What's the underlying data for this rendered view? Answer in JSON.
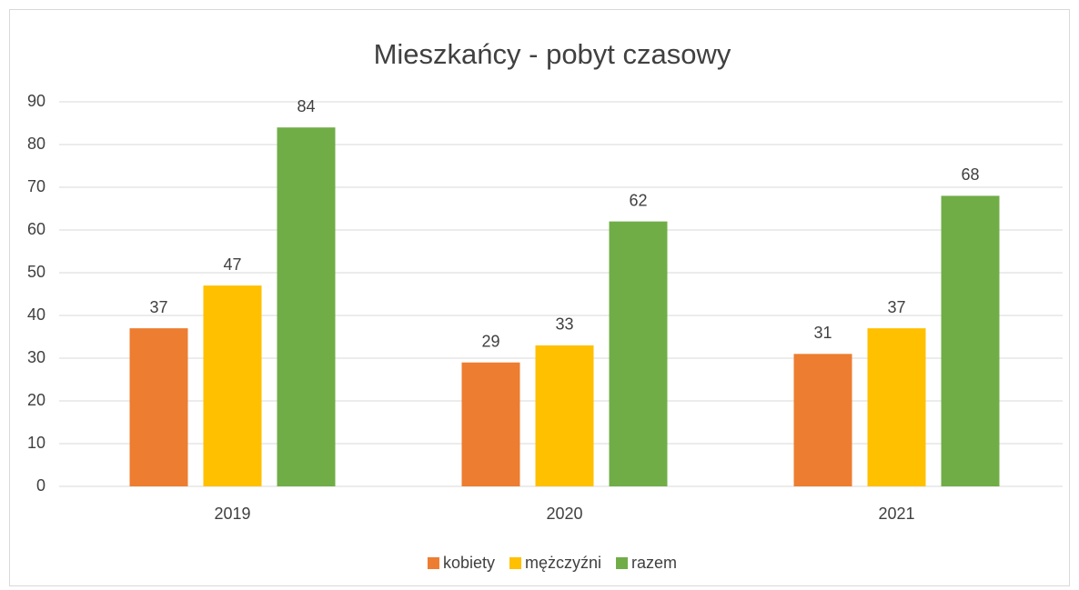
{
  "chart_data": {
    "type": "bar",
    "title": "Mieszkańcy - pobyt czasowy",
    "categories": [
      "2019",
      "2020",
      "2021"
    ],
    "series": [
      {
        "name": "kobiety",
        "color": "#ed7d31",
        "values": [
          37,
          29,
          31
        ]
      },
      {
        "name": "mężczyźni",
        "color": "#ffc000",
        "values": [
          47,
          33,
          37
        ]
      },
      {
        "name": "razem",
        "color": "#70ad47",
        "values": [
          84,
          62,
          68
        ]
      }
    ],
    "ylim": [
      0,
      90
    ],
    "yticks": [
      0,
      10,
      20,
      30,
      40,
      50,
      60,
      70,
      80,
      90
    ],
    "grid": true,
    "legend": "bottom"
  }
}
